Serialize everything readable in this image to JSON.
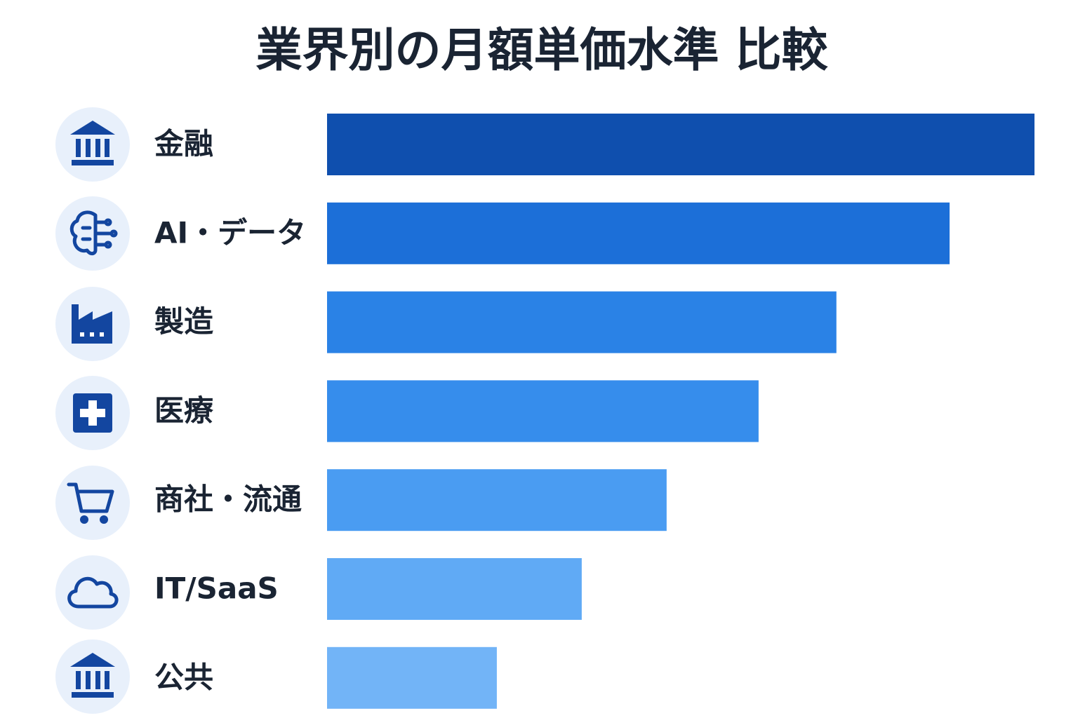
{
  "chart_data": {
    "type": "hbar",
    "title": "業界別の月額単価水準 比較",
    "categories": [
      "金融",
      "AI・データ",
      "製造",
      "医療",
      "商社・流通",
      "IT/SaaS",
      "公共"
    ],
    "values": [
      100,
      88,
      72,
      61,
      48,
      36,
      24
    ],
    "colors": [
      "#0f4fae",
      "#1c6fd8",
      "#2a82e6",
      "#368dec",
      "#4a9cf2",
      "#60aaf5",
      "#72b4f7"
    ],
    "xlim": [
      0,
      100
    ]
  }
}
